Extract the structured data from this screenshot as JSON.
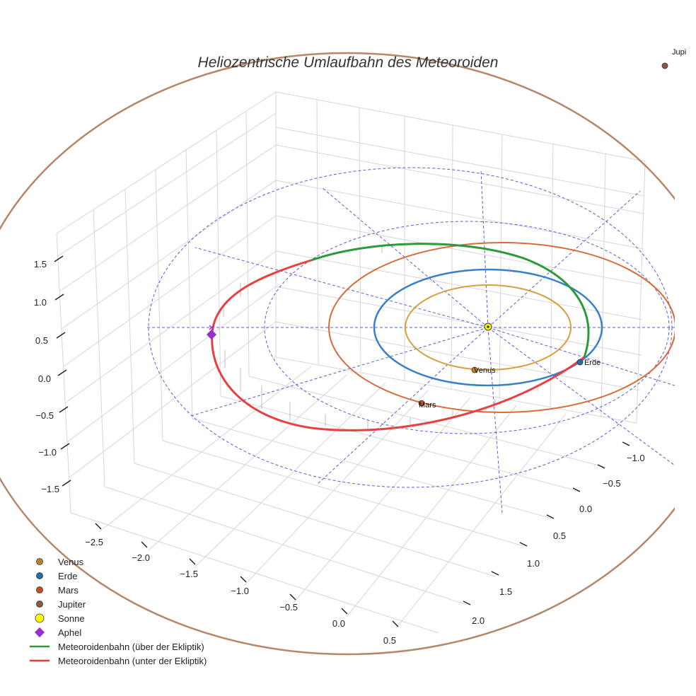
{
  "chart_data": {
    "type": "3d-orbit-plot",
    "title": "Heliozentrische Umlaufbahn des Meteoroiden",
    "axes": {
      "x_ticks": [
        "−2.5",
        "−2.0",
        "−1.5",
        "−1.0",
        "−0.5",
        "0.0",
        "0.5"
      ],
      "y_ticks": [
        "−1.0",
        "−0.5",
        "0.0",
        "0.5",
        "1.0",
        "1.5",
        "2.0"
      ],
      "z_ticks": [
        "1.5",
        "1.0",
        "0.5",
        "0.0",
        "−0.5",
        "−1.0",
        "−1.5"
      ],
      "z_range": [
        -1.75,
        1.75
      ]
    },
    "planets": [
      {
        "name": "Venus",
        "semi_major_au": 0.72,
        "color": "#d4a040",
        "marker_color": "#c0802a",
        "label": "Venus"
      },
      {
        "name": "Erde",
        "semi_major_au": 1.0,
        "color": "#3a80c8",
        "marker_color": "#1f6fb0",
        "label": "Erde"
      },
      {
        "name": "Mars",
        "semi_major_au": 1.52,
        "color": "#d96a3a",
        "marker_color": "#c05020",
        "label": "Mars"
      },
      {
        "name": "Jupiter",
        "semi_major_au": 5.2,
        "color": "#b5866a",
        "marker_color": "#8a5a3a",
        "label": "Jupi"
      }
    ],
    "sun": {
      "name": "Sonne",
      "color": "#ffff00"
    },
    "aphel": {
      "name": "Aphel",
      "color": "#9a30c8"
    },
    "meteoroid_orbit": {
      "above_label": "Meteoroidenbahn (über der Ekliptik)",
      "below_label": "Meteoroidenbahn (unter der Ekliptik)",
      "above_color": "#2a9a3a",
      "below_color": "#e84040"
    },
    "reference_grid_color": "#5a5ae0",
    "legend": [
      {
        "label": "Venus",
        "kind": "dot",
        "color": "#c0802a"
      },
      {
        "label": "Erde",
        "kind": "dot",
        "color": "#1f6fb0"
      },
      {
        "label": "Mars",
        "kind": "dot",
        "color": "#c05020"
      },
      {
        "label": "Jupiter",
        "kind": "dot",
        "color": "#8a5a3a"
      },
      {
        "label": "Sonne",
        "kind": "bigdot",
        "color": "#ffff00"
      },
      {
        "label": "Aphel",
        "kind": "diamond",
        "color": "#9a30c8"
      },
      {
        "label": "Meteoroidenbahn (über der Ekliptik)",
        "kind": "line",
        "color": "#2a9a3a"
      },
      {
        "label": "Meteoroidenbahn (unter der Ekliptik)",
        "kind": "line",
        "color": "#e84040"
      }
    ]
  }
}
